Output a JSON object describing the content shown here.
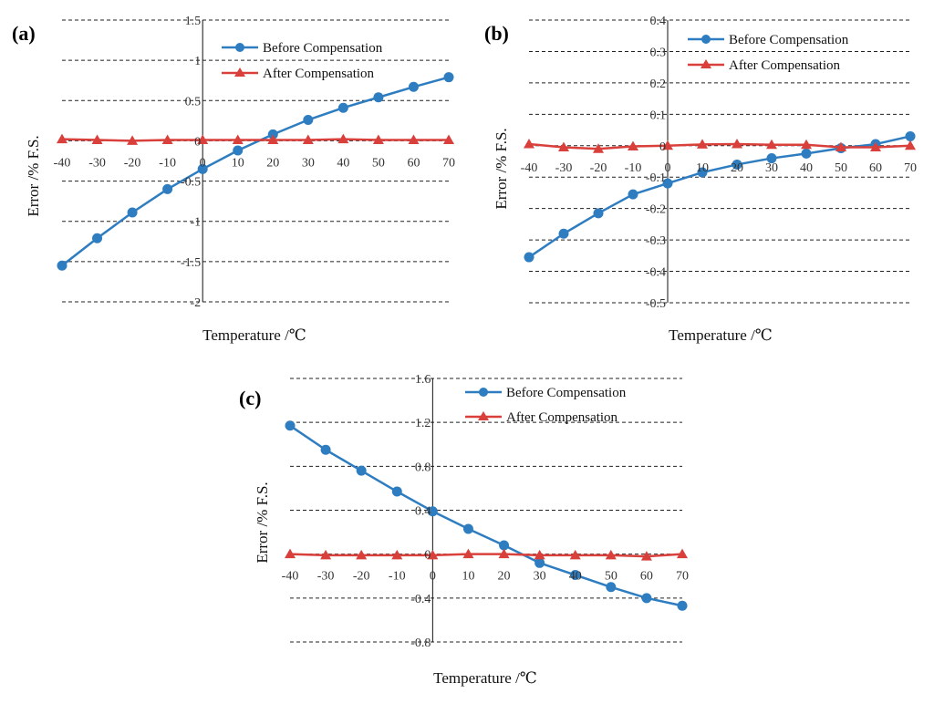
{
  "figure": {
    "legend": {
      "before": "Before Compensation",
      "after": "After Compensation"
    },
    "colors": {
      "before": "#2E7DC1",
      "after": "#D9403B"
    }
  },
  "chart_data": [
    {
      "id": "a",
      "type": "line",
      "panel_label": "(a)",
      "xlabel": "Temperature /℃",
      "ylabel": "Error /% F.S.",
      "x": [
        -40,
        -30,
        -20,
        -10,
        0,
        10,
        20,
        30,
        40,
        50,
        60,
        70
      ],
      "x_tick_labels": [
        "-40",
        "-30",
        "-20",
        "-10",
        "0",
        "10",
        "20",
        "30",
        "40",
        "50",
        "60",
        "70"
      ],
      "y_ticks": [
        1.5,
        1,
        0.5,
        0,
        -0.5,
        -1,
        -1.5,
        -2
      ],
      "y_tick_labels": [
        "1.5",
        "1",
        "0.5",
        "0",
        "-0.5",
        "-1",
        "-1.5",
        "-2"
      ],
      "ylim": [
        -2,
        1.5
      ],
      "legend_position": "top-right",
      "series": [
        {
          "name": "Before Compensation",
          "marker": "circle",
          "values": [
            -1.55,
            -1.21,
            -0.89,
            -0.6,
            -0.35,
            -0.12,
            0.08,
            0.26,
            0.41,
            0.54,
            0.67,
            0.79
          ]
        },
        {
          "name": "After Compensation",
          "marker": "triangle",
          "values": [
            0.02,
            0.01,
            0.0,
            0.01,
            0.01,
            0.01,
            0.01,
            0.01,
            0.02,
            0.01,
            0.01,
            0.01
          ]
        }
      ]
    },
    {
      "id": "b",
      "type": "line",
      "panel_label": "(b)",
      "xlabel": "Temperature /℃",
      "ylabel": "Error /% F.S.",
      "x": [
        -40,
        -30,
        -20,
        -10,
        0,
        10,
        20,
        30,
        40,
        50,
        60,
        70
      ],
      "x_tick_labels": [
        "-40",
        "-30",
        "-20",
        "-10",
        "0",
        "10",
        "20",
        "30",
        "40",
        "50",
        "60",
        "70"
      ],
      "y_ticks": [
        0.4,
        0.3,
        0.2,
        0.1,
        0,
        -0.1,
        -0.2,
        -0.3,
        -0.4,
        -0.5
      ],
      "y_tick_labels": [
        "0.4",
        "0.3",
        "0.2",
        "0.1",
        "0",
        "-0.1",
        "-0.2",
        "-0.3",
        "-0.4",
        "-0.5"
      ],
      "ylim": [
        -0.5,
        0.4
      ],
      "legend_position": "top-right",
      "series": [
        {
          "name": "Before Compensation",
          "marker": "circle",
          "values": [
            -0.355,
            -0.28,
            -0.215,
            -0.155,
            -0.12,
            -0.085,
            -0.06,
            -0.04,
            -0.025,
            -0.008,
            0.005,
            0.03
          ]
        },
        {
          "name": "After Compensation",
          "marker": "triangle",
          "values": [
            0.005,
            -0.005,
            -0.01,
            -0.002,
            0.0,
            0.004,
            0.005,
            0.003,
            0.003,
            -0.005,
            -0.005,
            0.0
          ]
        }
      ]
    },
    {
      "id": "c",
      "type": "line",
      "panel_label": "(c)",
      "xlabel": "Temperature /℃",
      "ylabel": "Error /% F.S.",
      "x": [
        -40,
        -30,
        -20,
        -10,
        0,
        10,
        20,
        30,
        40,
        50,
        60,
        70
      ],
      "x_tick_labels": [
        "-40",
        "-30",
        "-20",
        "-10",
        "0",
        "10",
        "20",
        "30",
        "40",
        "50",
        "60",
        "70"
      ],
      "y_ticks": [
        1.6,
        1.2,
        0.8,
        0.4,
        0,
        -0.4,
        -0.8
      ],
      "y_tick_labels": [
        "1.6",
        "1.2",
        "0.8",
        "0.4",
        "0",
        "-0.4",
        "-0.8"
      ],
      "ylim": [
        -0.8,
        1.6
      ],
      "legend_position": "top-right",
      "series": [
        {
          "name": "Before Compensation",
          "marker": "circle",
          "values": [
            1.17,
            0.95,
            0.76,
            0.57,
            0.39,
            0.23,
            0.08,
            -0.08,
            -0.19,
            -0.3,
            -0.4,
            -0.47
          ]
        },
        {
          "name": "After Compensation",
          "marker": "triangle",
          "values": [
            0.0,
            -0.01,
            -0.01,
            -0.01,
            -0.01,
            0.0,
            0.0,
            -0.01,
            -0.01,
            -0.01,
            -0.02,
            0.0
          ]
        }
      ]
    }
  ]
}
